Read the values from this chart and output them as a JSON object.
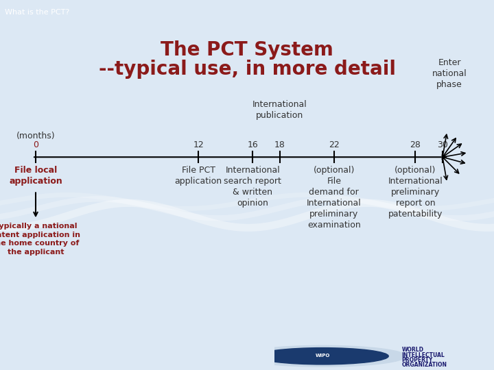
{
  "title_line1": "The PCT System",
  "title_line2": "--typical use, in more detail",
  "title_color": "#8B1A1A",
  "header_text": "What is the PCT?",
  "header_bg": "#1a1a6e",
  "header_text_color": "#ffffff",
  "footer_bg": "#1a1a6e",
  "footer_light_bg": "#b8d4e8",
  "slide_bg": "#dce8f4",
  "tick_positions": [
    0,
    12,
    16,
    18,
    22,
    28,
    30
  ],
  "tick_labels": [
    "0",
    "12",
    "16",
    "18",
    "22",
    "28",
    "30"
  ],
  "months_label": "(months)",
  "dark_red": "#8B1A1A",
  "dark_navy": "#1a1a6e",
  "text_color": "#333333",
  "radiating_angles": [
    80,
    55,
    35,
    10,
    -15,
    -45,
    -80
  ]
}
